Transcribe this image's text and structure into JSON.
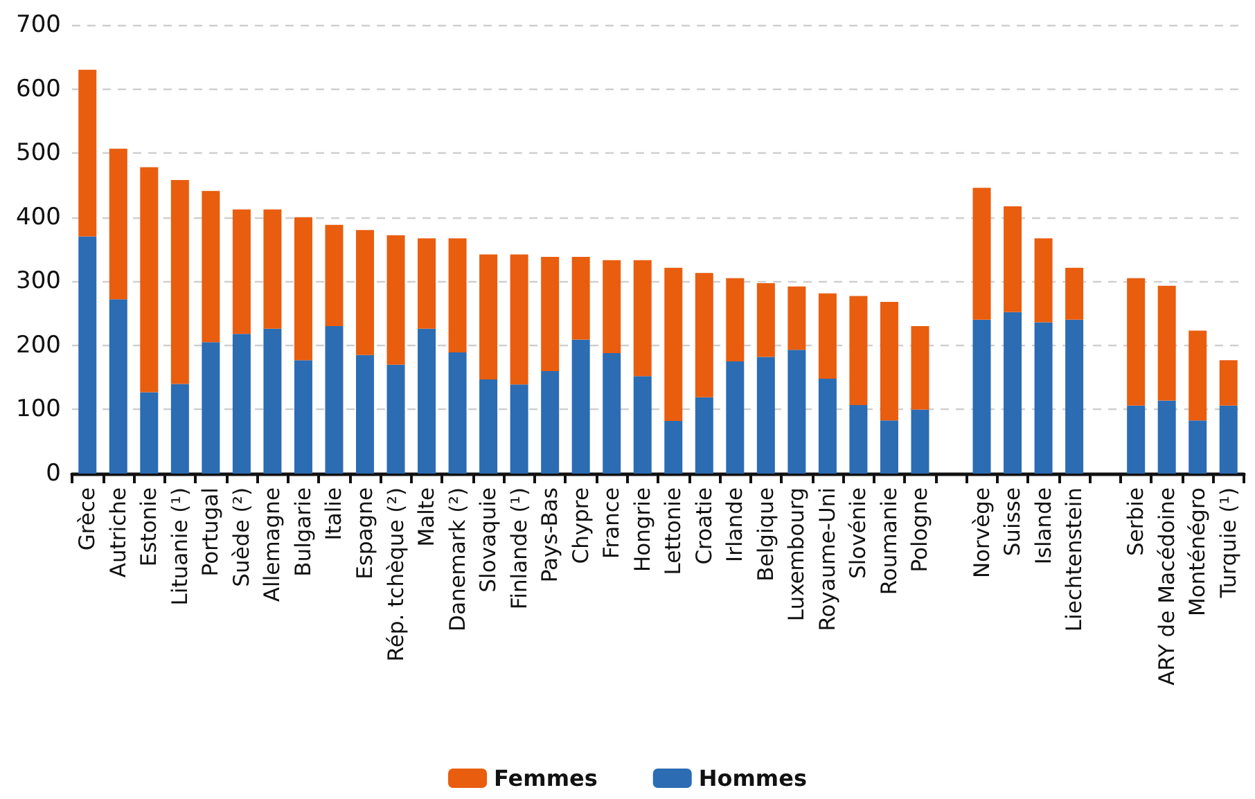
{
  "chart_data": {
    "type": "bar",
    "stacked": true,
    "categories": [
      "Grèce",
      "Autriche",
      "Estonie",
      "Lituanie (¹)",
      "Portugal",
      "Suède (²)",
      "Allemagne",
      "Bulgarie",
      "Italie",
      "Espagne",
      "Rép. tchèque (²)",
      "Malte",
      "Danemark (²)",
      "Slovaquie",
      "Finlande (¹)",
      "Pays-Bas",
      "Chypre",
      "France",
      "Hongrie",
      "Lettonie",
      "Croatie",
      "Irlande",
      "Belgique",
      "Luxembourg",
      "Royaume-Uni",
      "Slovénie",
      "Roumanie",
      "Pologne",
      null,
      "Norvège",
      "Suisse",
      "Islande",
      "Liechtenstein",
      null,
      "Serbie",
      "ARY de Macédoine",
      "Monténégro",
      "Turquie (¹)"
    ],
    "series": [
      {
        "name": "Hommes",
        "color": "#2b6cb3",
        "values": [
          370,
          272,
          127,
          140,
          205,
          218,
          226,
          177,
          230,
          185,
          170,
          226,
          189,
          147,
          139,
          160,
          209,
          188,
          152,
          82,
          119,
          175,
          182,
          193,
          148,
          107,
          83,
          100,
          null,
          240,
          252,
          236,
          240,
          null,
          106,
          114,
          83,
          106
        ]
      },
      {
        "name": "Femmes",
        "color": "#e95d0f",
        "values": [
          260,
          235,
          351,
          318,
          236,
          194,
          186,
          223,
          158,
          195,
          202,
          141,
          178,
          195,
          203,
          178,
          129,
          145,
          181,
          239,
          194,
          130,
          115,
          99,
          133,
          170,
          185,
          130,
          null,
          206,
          165,
          131,
          81,
          null,
          199,
          179,
          140,
          71
        ]
      }
    ],
    "ylim": [
      0,
      700
    ],
    "yticks": [
      0,
      100,
      200,
      300,
      400,
      500,
      600,
      700
    ],
    "grid": "y",
    "legend": "bottom"
  }
}
